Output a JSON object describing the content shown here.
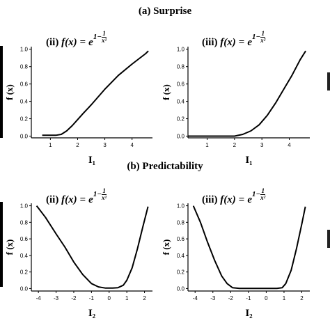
{
  "sections": [
    {
      "label": "(a) Surprise"
    },
    {
      "label": "(b) Predictability"
    }
  ],
  "panel_titles": {
    "roman_ii": "(ii)",
    "roman_iii": "(iii)",
    "fx": "f(x)",
    "eq": "=",
    "base": "e",
    "exp_lead": "1−",
    "frac_num": "1",
    "frac_den_1": "x¹",
    "frac_den_2": "x²"
  },
  "chart_data": [
    {
      "type": "line",
      "section": "(a) Surprise",
      "panel": "(ii)",
      "xlabel": "I₁",
      "ylabel": "f (x)",
      "xlim": [
        0.3,
        4.75
      ],
      "ylim": [
        -0.02,
        1.03
      ],
      "xticks": [
        1,
        2,
        3,
        4
      ],
      "yticks": [
        0.0,
        0.2,
        0.4,
        0.6,
        0.8,
        1.0
      ],
      "ytick_labels": [
        "0.0",
        "0.2",
        "0.4",
        "0.6",
        "0.8",
        "1.0"
      ],
      "x": [
        0.7,
        1.0,
        1.2,
        1.4,
        1.6,
        1.8,
        2.0,
        2.2,
        2.5,
        3.0,
        3.5,
        4.0,
        4.5,
        4.6
      ],
      "y": [
        0.01,
        0.01,
        0.01,
        0.02,
        0.06,
        0.12,
        0.19,
        0.26,
        0.36,
        0.54,
        0.7,
        0.83,
        0.95,
        0.98
      ]
    },
    {
      "type": "line",
      "section": "(a) Surprise",
      "panel": "(iii)",
      "xlabel": "I₁",
      "ylabel": "f (x)",
      "xlim": [
        0.3,
        4.75
      ],
      "ylim": [
        -0.02,
        1.03
      ],
      "xticks": [
        1,
        2,
        3,
        4
      ],
      "yticks": [
        0.0,
        0.2,
        0.4,
        0.6,
        0.8,
        1.0
      ],
      "ytick_labels": [
        "0.0",
        "0.2",
        "0.4",
        "0.6",
        "0.8",
        "1.0"
      ],
      "x": [
        0.3,
        1.0,
        1.5,
        2.0,
        2.3,
        2.6,
        2.9,
        3.2,
        3.5,
        3.8,
        4.1,
        4.4,
        4.6
      ],
      "y": [
        0.0,
        0.0,
        0.0,
        0.0,
        0.02,
        0.06,
        0.13,
        0.24,
        0.38,
        0.54,
        0.7,
        0.88,
        0.98
      ]
    },
    {
      "type": "line",
      "section": "(b) Predictability",
      "panel": "(ii)",
      "xlabel": "I₂",
      "ylabel": "f (x)",
      "xlim": [
        -4.4,
        2.45
      ],
      "ylim": [
        -0.03,
        1.03
      ],
      "xticks": [
        -4,
        -3,
        -2,
        -1,
        0,
        1,
        2
      ],
      "xtick_labels": [
        "-4",
        "-3",
        "-2",
        "-1",
        "0",
        "1",
        "2"
      ],
      "yticks": [
        0.0,
        0.2,
        0.4,
        0.6,
        0.8,
        1.0
      ],
      "ytick_labels": [
        "0.0",
        "0.2",
        "0.4",
        "0.6",
        "0.8",
        "1.0"
      ],
      "x": [
        -4.1,
        -3.6,
        -3.0,
        -2.5,
        -2.0,
        -1.5,
        -1.0,
        -0.6,
        -0.2,
        0.2,
        0.5,
        0.8,
        1.0,
        1.3,
        1.6,
        1.9,
        2.2
      ],
      "y": [
        1.0,
        0.86,
        0.66,
        0.5,
        0.32,
        0.17,
        0.06,
        0.02,
        0.005,
        0.005,
        0.01,
        0.04,
        0.1,
        0.25,
        0.48,
        0.74,
        0.99
      ]
    },
    {
      "type": "line",
      "section": "(b) Predictability",
      "panel": "(iii)",
      "xlabel": "I₂",
      "ylabel": "f (x)",
      "xlim": [
        -4.4,
        2.45
      ],
      "ylim": [
        -0.03,
        1.03
      ],
      "xticks": [
        -4,
        -3,
        -2,
        -1,
        0,
        1,
        2
      ],
      "xtick_labels": [
        "-4",
        "-3",
        "-2",
        "-1",
        "0",
        "1",
        "2"
      ],
      "yticks": [
        0.0,
        0.2,
        0.4,
        0.6,
        0.8,
        1.0
      ],
      "ytick_labels": [
        "0.0",
        "0.2",
        "0.4",
        "0.6",
        "0.8",
        "1.0"
      ],
      "x": [
        -4.1,
        -3.7,
        -3.3,
        -2.9,
        -2.5,
        -2.2,
        -1.9,
        -1.5,
        -1.0,
        0.0,
        0.6,
        0.9,
        1.1,
        1.4,
        1.7,
        2.0,
        2.2
      ],
      "y": [
        1.0,
        0.8,
        0.56,
        0.34,
        0.15,
        0.06,
        0.01,
        0.002,
        0.002,
        0.002,
        0.002,
        0.01,
        0.06,
        0.22,
        0.48,
        0.78,
        0.99
      ]
    }
  ]
}
